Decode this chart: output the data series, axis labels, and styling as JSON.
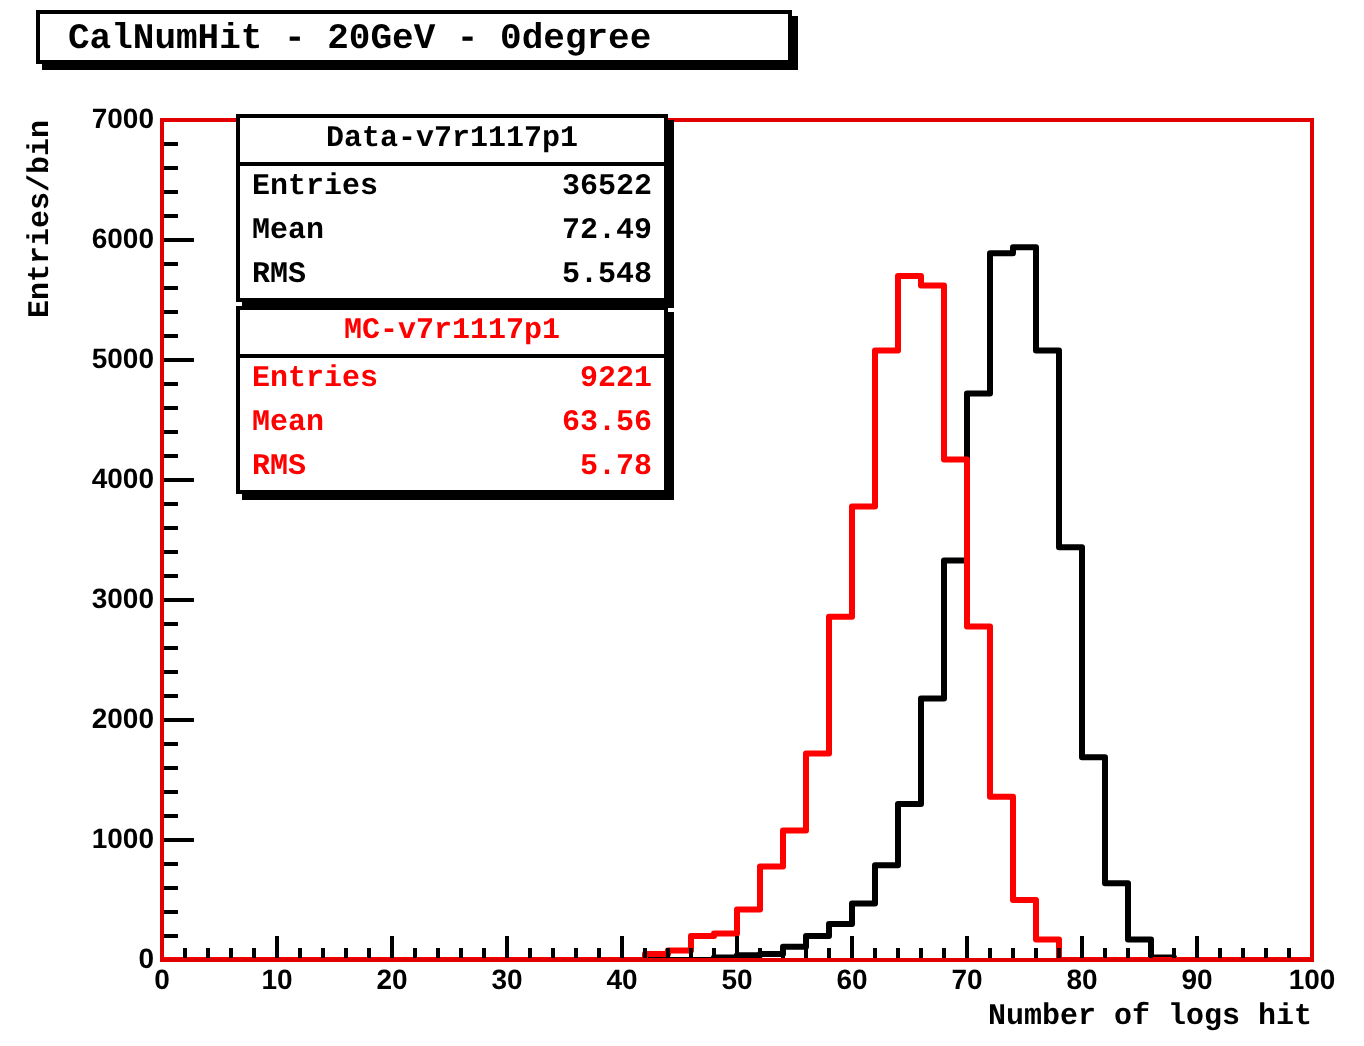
{
  "chart_data": {
    "type": "histogram",
    "title": "CalNumHit - 20GeV - 0degree",
    "xlabel": "Number of logs hit",
    "ylabel": "Entries/bin",
    "bins": [
      0,
      2,
      4,
      6,
      8,
      10,
      12,
      14,
      16,
      18,
      20,
      22,
      24,
      26,
      28,
      30,
      32,
      34,
      36,
      38,
      40,
      42,
      44,
      46,
      48,
      50,
      52,
      54,
      56,
      58,
      60,
      62,
      64,
      66,
      68,
      70,
      72,
      74,
      76,
      78,
      80,
      82,
      84,
      86,
      88,
      90,
      92,
      94,
      96,
      98,
      100
    ],
    "series": [
      {
        "name": "Data-v7r1117p1",
        "color": "#000000",
        "values": [
          0,
          0,
          0,
          0,
          0,
          0,
          0,
          0,
          0,
          0,
          0,
          0,
          0,
          0,
          0,
          0,
          0,
          0,
          0,
          0,
          0,
          0,
          0,
          0,
          20,
          40,
          50,
          110,
          200,
          300,
          470,
          790,
          1300,
          2180,
          3330,
          4720,
          5890,
          5940,
          5080,
          3440,
          1690,
          640,
          170,
          20,
          0,
          0,
          0,
          0,
          0,
          0
        ]
      },
      {
        "name": "MC-v7r1117p1",
        "color": "#ff0000",
        "values": [
          0,
          0,
          0,
          0,
          0,
          0,
          0,
          0,
          0,
          0,
          0,
          0,
          0,
          0,
          0,
          0,
          0,
          0,
          0,
          0,
          0,
          50,
          80,
          200,
          220,
          420,
          780,
          1080,
          1720,
          2860,
          3780,
          5080,
          5700,
          5620,
          4170,
          2780,
          1360,
          500,
          170,
          0,
          0,
          0,
          0,
          0,
          0,
          0,
          0,
          0,
          0,
          0
        ]
      }
    ],
    "annotations": [
      "Entries 36522",
      "Mean 72.49",
      "RMS 5.548",
      "Entries 9221",
      "Mean 63.56",
      "RMS 5.78"
    ],
    "xlim": [
      0,
      100
    ],
    "xticks": [
      0,
      10,
      20,
      30,
      40,
      50,
      60,
      70,
      80,
      90,
      100
    ],
    "ylim": [
      0,
      7000
    ],
    "yticks": [
      0,
      1000,
      2000,
      3000,
      4000,
      5000,
      6000,
      7000
    ],
    "grid": false,
    "legend": "top left"
  }
}
